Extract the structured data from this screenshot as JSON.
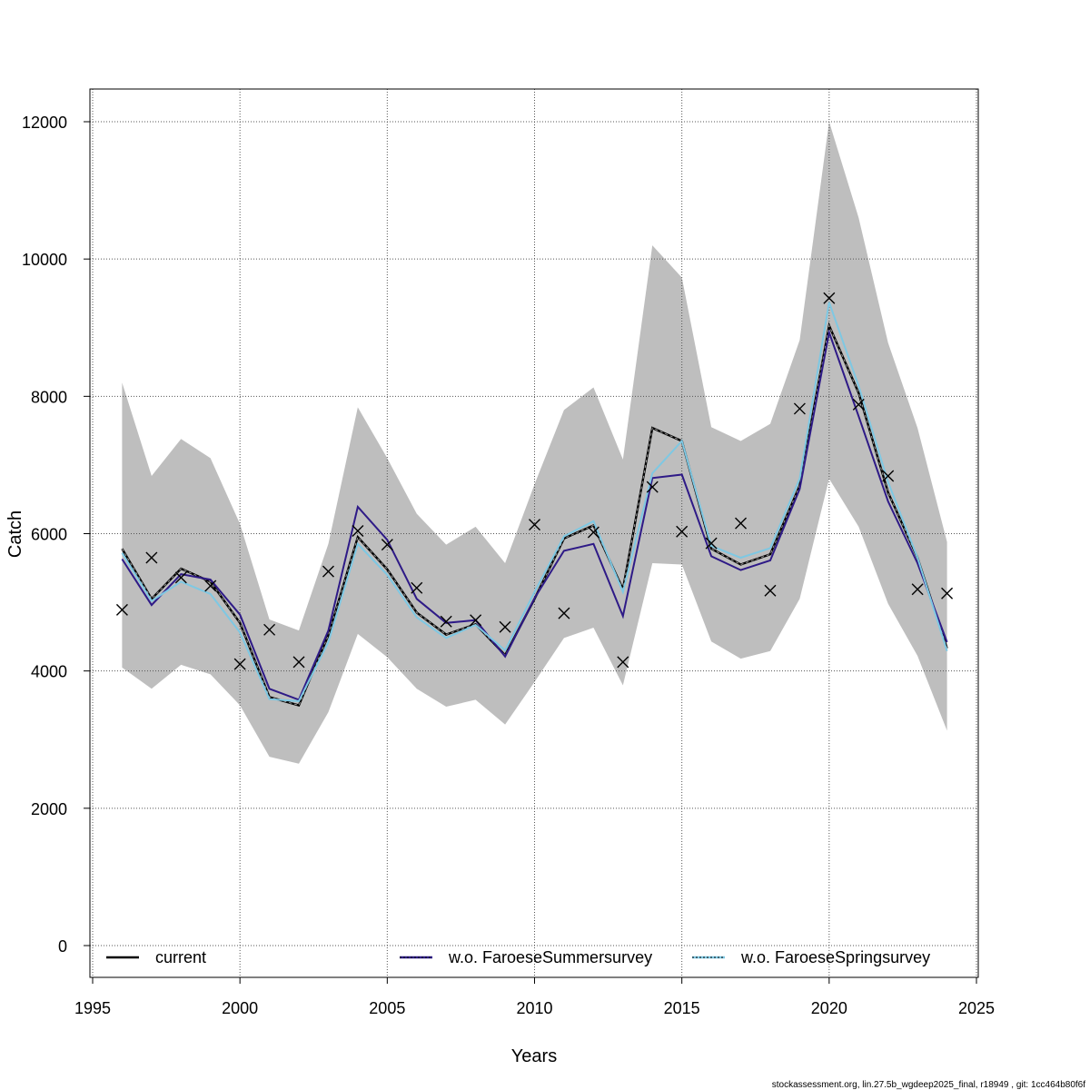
{
  "chart_data": {
    "type": "line",
    "xlabel": "Years",
    "ylabel": "Catch",
    "xlim": [
      1995,
      2025
    ],
    "ylim": [
      0,
      12000
    ],
    "xticks": [
      1995,
      2000,
      2005,
      2010,
      2015,
      2020,
      2025
    ],
    "yticks": [
      0,
      2000,
      4000,
      6000,
      8000,
      10000,
      12000
    ],
    "grid": true,
    "legend_position": "bottom",
    "x": [
      1996,
      1997,
      1998,
      1999,
      2000,
      2001,
      2002,
      2003,
      2004,
      2005,
      2006,
      2007,
      2008,
      2009,
      2010,
      2011,
      2012,
      2013,
      2014,
      2015,
      2016,
      2017,
      2018,
      2019,
      2020,
      2021,
      2022,
      2023,
      2024
    ],
    "confidence_band": {
      "color": "#bebebe",
      "lower": [
        4050,
        3740,
        4090,
        3950,
        3500,
        2750,
        2650,
        3400,
        4540,
        4200,
        3740,
        3480,
        3580,
        3220,
        3840,
        4480,
        4630,
        3790,
        5570,
        5550,
        4430,
        4180,
        4290,
        5050,
        6800,
        6100,
        4980,
        4220,
        3130
      ],
      "upper": [
        8200,
        6840,
        7380,
        7100,
        6140,
        4750,
        4590,
        5850,
        7840,
        7100,
        6290,
        5840,
        6100,
        5570,
        6720,
        7800,
        8130,
        7080,
        10200,
        9730,
        7550,
        7350,
        7600,
        8820,
        12000,
        10600,
        8780,
        7540,
        5880
      ]
    },
    "series": [
      {
        "name": "current",
        "color": "#000000",
        "dash": "",
        "values": [
          5780,
          5050,
          5490,
          5300,
          4700,
          3620,
          3500,
          4520,
          5950,
          5480,
          4850,
          4530,
          4680,
          4230,
          5050,
          5930,
          6120,
          5190,
          7540,
          7350,
          5780,
          5550,
          5700,
          6700,
          9030,
          8050,
          6600,
          5650,
          4330
        ]
      },
      {
        "name": "w.o. FaroeseSummersurvey",
        "color": "#2e1a87",
        "dash": "4 3",
        "values": [
          5630,
          4960,
          5410,
          5330,
          4820,
          3740,
          3580,
          4590,
          6390,
          5910,
          5050,
          4700,
          4740,
          4210,
          5060,
          5750,
          5850,
          4800,
          6810,
          6860,
          5670,
          5470,
          5610,
          6650,
          8930,
          7710,
          6470,
          5570,
          4420
        ]
      },
      {
        "name": "w.o. FaroeseSpringsurvey",
        "color": "#7ec8e3",
        "dash": "2 2",
        "values": [
          5720,
          5020,
          5300,
          5120,
          4560,
          3590,
          3560,
          4420,
          5850,
          5400,
          4780,
          4480,
          4670,
          4300,
          5150,
          5960,
          6180,
          5150,
          6880,
          7350,
          5820,
          5650,
          5790,
          6800,
          9370,
          8150,
          6750,
          5650,
          4290
        ]
      }
    ],
    "observations": {
      "marker": "x",
      "values": [
        4890,
        5650,
        5360,
        5240,
        4100,
        4600,
        4130,
        5450,
        6040,
        5840,
        5210,
        4720,
        4740,
        4640,
        6130,
        4840,
        6020,
        4130,
        6680,
        6030,
        5860,
        6150,
        5170,
        7820,
        9430,
        7880,
        6840,
        5190,
        5130
      ]
    }
  },
  "footer": {
    "text": "stockassessment.org, lin.27.5b_wgdeep2025_final, r18949 , git: 1cc464b80f6f"
  }
}
